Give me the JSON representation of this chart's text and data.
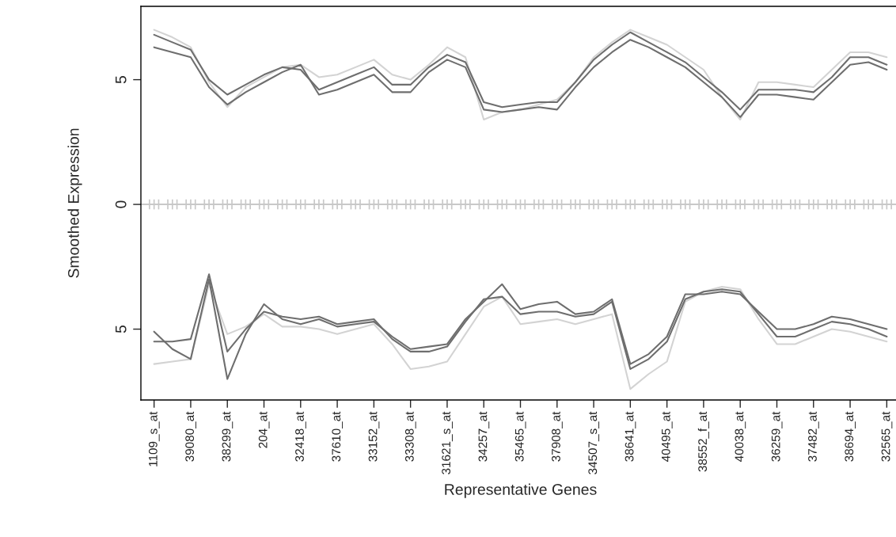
{
  "chart_data": {
    "type": "line",
    "xlabel": "Representative Genes",
    "ylabel": "Smoothed Expression",
    "categories": [
      "1109_s_at",
      null,
      "39080_at",
      null,
      "38299_at",
      null,
      "204_at",
      null,
      "32418_at",
      null,
      "37610_at",
      null,
      "33152_at",
      null,
      "33308_at",
      null,
      "31621_s_at",
      null,
      "34257_at",
      null,
      "35465_at",
      null,
      "37908_at",
      null,
      "34507_s_at",
      null,
      "38641_at",
      null,
      "40495_at",
      null,
      "38552_f_at",
      null,
      "40038_at",
      null,
      "36259_at",
      null,
      "37482_at",
      null,
      "38694_at",
      null,
      "32565_at"
    ],
    "ylim": [
      -7.84,
      7.94
    ],
    "yticks": [
      {
        "value": 5,
        "label": "5"
      },
      {
        "value": 0,
        "label": "0"
      },
      {
        "value": -5,
        "label": "5"
      }
    ],
    "ref_lines": [
      {
        "axis": "y",
        "value": 0,
        "color": "#c8c8c8"
      }
    ],
    "series": [
      {
        "color": "#d3d3d3",
        "values": [
          7.0,
          6.7,
          6.3,
          4.9,
          3.9,
          4.7,
          5.1,
          5.5,
          5.6,
          5.1,
          5.2,
          5.5,
          5.8,
          5.2,
          5.0,
          5.6,
          6.3,
          5.9,
          3.4,
          3.7,
          3.8,
          4.0,
          4.2,
          4.9,
          5.9,
          6.5,
          7.0,
          6.7,
          6.4,
          5.9,
          5.4,
          4.3,
          3.4,
          4.9,
          4.9,
          4.8,
          4.7,
          5.4,
          6.1,
          6.1,
          5.9
        ]
      },
      {
        "color": "#d3d3d3",
        "values": [
          -6.4,
          -6.3,
          -6.2,
          -3.2,
          -5.2,
          -4.9,
          -4.4,
          -4.9,
          -4.9,
          -5.0,
          -5.2,
          -5.0,
          -4.8,
          -5.6,
          -6.6,
          -6.5,
          -6.3,
          -5.2,
          -4.1,
          -3.7,
          -4.8,
          -4.7,
          -4.6,
          -4.8,
          -4.6,
          -4.4,
          -7.4,
          -6.8,
          -6.3,
          -3.9,
          -3.5,
          -3.3,
          -3.4,
          -4.6,
          -5.6,
          -5.6,
          -5.3,
          -5.0,
          -5.1,
          -5.3,
          -5.5
        ]
      },
      {
        "color": "#6e6e6e",
        "values": [
          6.8,
          6.5,
          6.2,
          5.0,
          4.4,
          4.8,
          5.2,
          5.5,
          5.4,
          4.6,
          4.9,
          5.2,
          5.5,
          4.8,
          4.8,
          5.5,
          6.0,
          5.7,
          4.1,
          3.9,
          4.0,
          4.1,
          4.1,
          4.9,
          5.8,
          6.4,
          6.9,
          6.5,
          6.1,
          5.7,
          5.1,
          4.5,
          3.8,
          4.6,
          4.6,
          4.6,
          4.5,
          5.1,
          5.9,
          5.9,
          5.6
        ]
      },
      {
        "color": "#6e6e6e",
        "values": [
          6.3,
          6.1,
          5.9,
          4.7,
          4.0,
          4.5,
          4.9,
          5.3,
          5.6,
          4.4,
          4.6,
          4.9,
          5.2,
          4.5,
          4.5,
          5.3,
          5.8,
          5.5,
          3.8,
          3.7,
          3.8,
          3.9,
          3.8,
          4.7,
          5.5,
          6.1,
          6.6,
          6.3,
          5.9,
          5.5,
          4.9,
          4.3,
          3.5,
          4.4,
          4.4,
          4.3,
          4.2,
          4.9,
          5.6,
          5.7,
          5.4
        ]
      },
      {
        "color": "#6e6e6e",
        "values": [
          -5.5,
          -5.5,
          -5.4,
          -2.8,
          -5.9,
          -5.0,
          -4.3,
          -4.5,
          -4.6,
          -4.5,
          -4.8,
          -4.7,
          -4.6,
          -5.4,
          -5.9,
          -5.9,
          -5.7,
          -4.7,
          -3.8,
          -3.7,
          -4.4,
          -4.3,
          -4.3,
          -4.5,
          -4.4,
          -3.9,
          -6.6,
          -6.2,
          -5.5,
          -3.8,
          -3.5,
          -3.4,
          -3.5,
          -4.4,
          -5.3,
          -5.3,
          -5.0,
          -4.7,
          -4.8,
          -5.0,
          -5.3
        ]
      },
      {
        "color": "#6e6e6e",
        "values": [
          -5.1,
          -5.8,
          -6.2,
          -3.0,
          -7.0,
          -5.2,
          -4.0,
          -4.6,
          -4.8,
          -4.6,
          -4.9,
          -4.8,
          -4.7,
          -5.3,
          -5.8,
          -5.7,
          -5.6,
          -4.6,
          -3.9,
          -3.2,
          -4.2,
          -4.0,
          -3.9,
          -4.4,
          -4.3,
          -3.8,
          -6.4,
          -6.0,
          -5.3,
          -3.6,
          -3.6,
          -3.5,
          -3.6,
          -4.3,
          -5.0,
          -5.0,
          -4.8,
          -4.5,
          -4.6,
          -4.8,
          -5.0
        ]
      }
    ]
  }
}
